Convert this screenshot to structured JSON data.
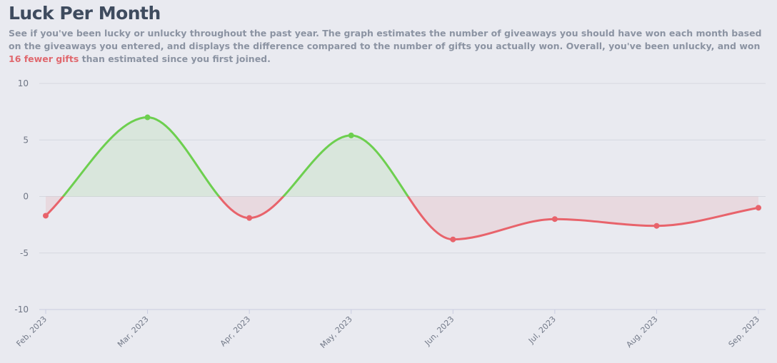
{
  "chart_data": {
    "type": "line",
    "title": "Luck Per Month",
    "subtitle": [
      "See if you've been lucky or unlucky throughout the past year. The graph estimates the number of giveaways you should have won each month based on the giveaways you entered, and displays the difference compared to the number of gifts you actually won. Overall, you've been unlucky, and won ",
      "16 fewer gifts",
      " than estimated since you first joined."
    ],
    "highlight_color": "#e0676d",
    "categories": [
      "Feb, 2023",
      "Mar, 2023",
      "Apr, 2023",
      "May, 2023",
      "Jun, 2023",
      "Jul, 2023",
      "Aug, 2023",
      "Sep, 2023"
    ],
    "values": [
      -1.7,
      7,
      -1.9,
      5.4,
      -3.8,
      -2,
      -2.6,
      -1
    ],
    "positive_color": "#6dcf4f",
    "negative_color": "#e8636b",
    "ylim": [
      -10,
      10
    ],
    "yticks": [
      -10,
      -5,
      0,
      5,
      10
    ],
    "grid": true
  }
}
